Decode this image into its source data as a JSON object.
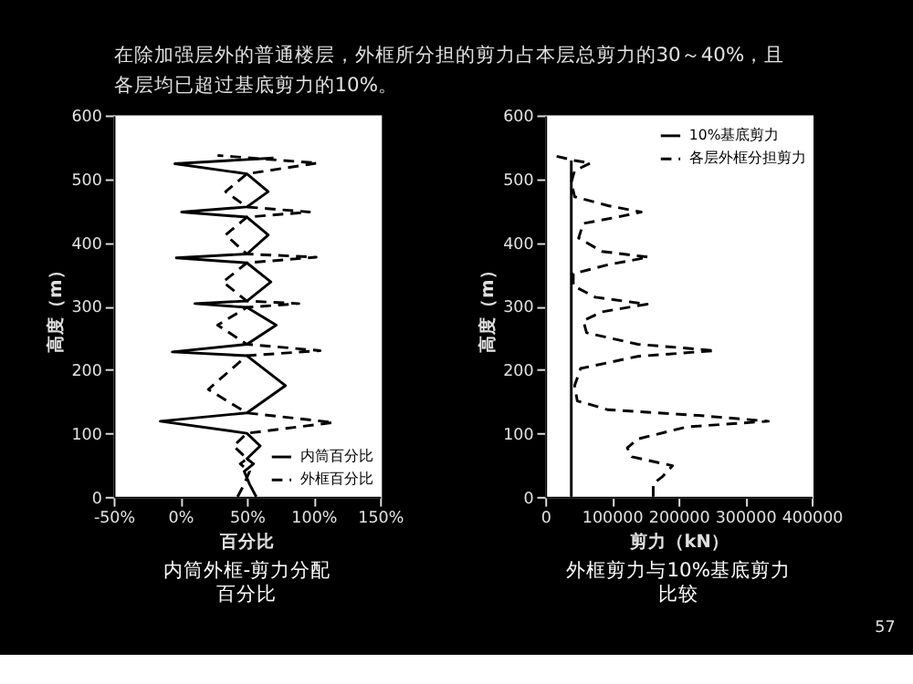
{
  "chart_data": [
    {
      "type": "other",
      "title": "在除加强层外的普通楼层，外框所分担的剪力占本层总剪力的30～40%，且各层均已超过基底剪力的10%。",
      "annotations": [
        "57"
      ]
    },
    {
      "type": "line",
      "title": "内筒外框-剪力分配百分比",
      "xlabel": "百分比",
      "ylabel": "高度（m）",
      "xlim": [
        -50,
        150
      ],
      "xticks": [
        {
          "value": -50,
          "label": "-50%"
        },
        {
          "value": 0,
          "label": "0%"
        },
        {
          "value": 50,
          "label": "50%"
        },
        {
          "value": 100,
          "label": "100%"
        },
        {
          "value": 150,
          "label": "150%"
        }
      ],
      "ylim": [
        0,
        600
      ],
      "yticks": [
        0,
        100,
        200,
        300,
        400,
        500,
        600
      ],
      "legend": "bottom right",
      "series": [
        {
          "name": "内筒百分比",
          "color": "#000000",
          "line_style": "solid",
          "x": [
            57,
            52,
            48,
            55,
            50,
            60,
            50,
            -15,
            50,
            79,
            50,
            -6,
            50,
            72,
            50,
            11,
            50,
            68,
            50,
            -3,
            50,
            66,
            50,
            1,
            50,
            66,
            50,
            -4,
            70
          ],
          "values": [
            0,
            20,
            40,
            52,
            60,
            80,
            100,
            119,
            132,
            175,
            222,
            228,
            240,
            270,
            298,
            304,
            308,
            338,
            368,
            376,
            382,
            412,
            440,
            448,
            456,
            480,
            508,
            524,
            533
          ]
        },
        {
          "name": "外框百分比",
          "color": "#000000",
          "line_style": "dashed",
          "x": [
            43,
            48,
            52,
            45,
            50,
            40,
            50,
            115,
            50,
            21,
            50,
            105,
            50,
            28,
            50,
            89,
            50,
            32,
            50,
            102,
            50,
            34,
            50,
            97,
            50,
            34,
            50,
            103,
            28
          ],
          "values": [
            0,
            20,
            40,
            52,
            60,
            80,
            100,
            117,
            132,
            169,
            222,
            230,
            240,
            270,
            298,
            304,
            308,
            338,
            368,
            377,
            382,
            412,
            440,
            448,
            456,
            480,
            508,
            525,
            537
          ]
        }
      ]
    },
    {
      "type": "line",
      "title": "外框剪力与10%基底剪力比较",
      "xlabel": "剪力（kN）",
      "ylabel": "高度（m）",
      "xlim": [
        0,
        400000
      ],
      "xticks": [
        0,
        100000,
        200000,
        300000,
        400000
      ],
      "ylim": [
        0,
        600
      ],
      "yticks": [
        0,
        100,
        200,
        300,
        400,
        500,
        600
      ],
      "legend": "top right",
      "series": [
        {
          "name": "10%基底剪力",
          "color": "#000000",
          "line_style": "solid",
          "x": [
            39000,
            39000
          ],
          "values": [
            0,
            529
          ]
        },
        {
          "name": "各层外框分担剪力",
          "color": "#000000",
          "line_style": "dashed",
          "x": [
            162000,
            162000,
            175000,
            191000,
            130000,
            123000,
            139000,
            212000,
            335000,
            230000,
            94000,
            48000,
            44000,
            53000,
            139000,
            255000,
            139000,
            62000,
            57000,
            85000,
            153000,
            75000,
            42000,
            42000,
            94000,
            155000,
            85000,
            50000,
            57000,
            103000,
            144000,
            94000,
            44000,
            39000,
            44000,
            68000,
            44000,
            12000
          ],
          "values": [
            0,
            21,
            31,
            49,
            63,
            77,
            91,
            110,
            119,
            128,
            137,
            151,
            175,
            202,
            221,
            230,
            240,
            258,
            277,
            291,
            303,
            314,
            332,
            351,
            365,
            377,
            386,
            407,
            430,
            439,
            448,
            458,
            472,
            495,
            513,
            525,
            529,
            537
          ]
        }
      ]
    }
  ]
}
